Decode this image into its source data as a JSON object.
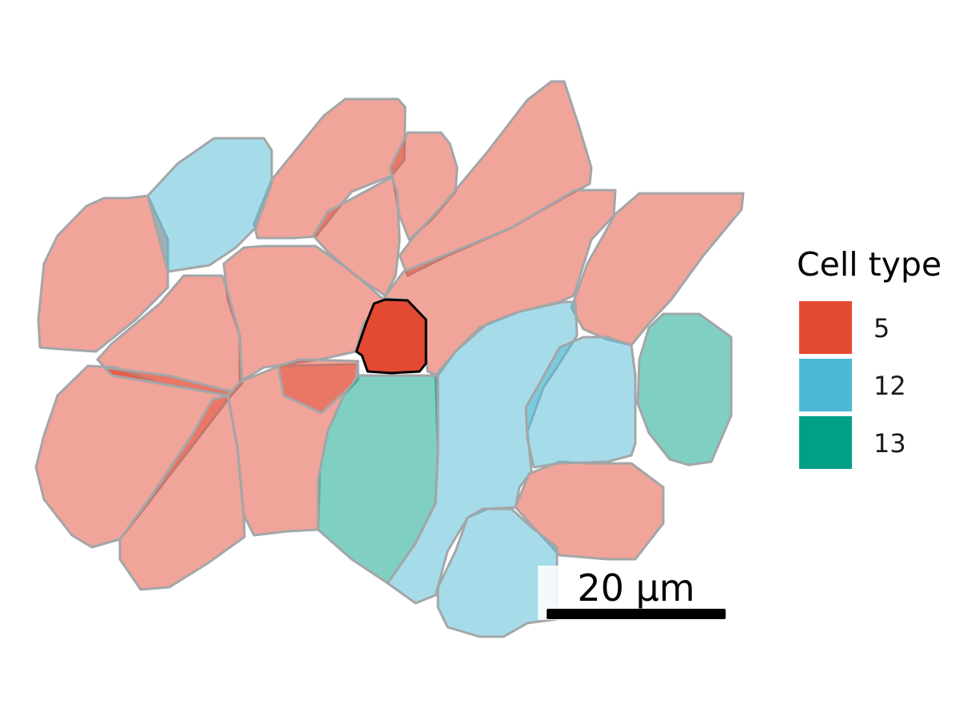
{
  "legend": {
    "title": "Cell type",
    "items": [
      {
        "label": "5",
        "color": "#e34a33"
      },
      {
        "label": "12",
        "color": "#4db9d4"
      },
      {
        "label": "13",
        "color": "#00a087"
      }
    ]
  },
  "scale_bar": {
    "label": "20 µm"
  },
  "cells": [
    {
      "type": "5",
      "highlighted": false
    },
    {
      "type": "5",
      "highlighted": false
    },
    {
      "type": "5",
      "highlighted": false
    },
    {
      "type": "5",
      "highlighted": false
    },
    {
      "type": "5",
      "highlighted": false
    },
    {
      "type": "5",
      "highlighted": false
    },
    {
      "type": "5",
      "highlighted": false
    },
    {
      "type": "5",
      "highlighted": false
    },
    {
      "type": "5",
      "highlighted": false
    },
    {
      "type": "5",
      "highlighted": false
    },
    {
      "type": "5",
      "highlighted": false
    },
    {
      "type": "5",
      "highlighted": false
    },
    {
      "type": "5",
      "highlighted": false
    },
    {
      "type": "5",
      "highlighted": false
    },
    {
      "type": "5",
      "highlighted": false
    },
    {
      "type": "12",
      "highlighted": false
    },
    {
      "type": "12",
      "highlighted": false
    },
    {
      "type": "12",
      "highlighted": false
    },
    {
      "type": "12",
      "highlighted": false
    },
    {
      "type": "13",
      "highlighted": false
    },
    {
      "type": "13",
      "highlighted": false
    },
    {
      "type": "5",
      "highlighted": true
    }
  ]
}
